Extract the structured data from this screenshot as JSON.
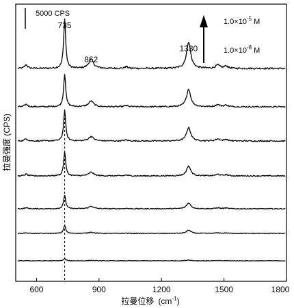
{
  "chart_data": {
    "type": "line",
    "xlabel_main": "拉曼位移",
    "xlabel_unit": "(cm",
    "xlabel_sup": "-1",
    "xlabel_close": ")",
    "ylabel": "拉曼强度 (CPS)",
    "xlim": [
      500,
      1800
    ],
    "xticks": [
      600,
      900,
      1200,
      1500,
      1800
    ],
    "scale_bar_label": "5000 CPS",
    "scale_bar_value": 5000,
    "dashed_line_x": 735,
    "peak_labels": [
      {
        "x": 735,
        "text": "735"
      },
      {
        "x": 862,
        "text": "862"
      },
      {
        "x": 1330,
        "text": "1330"
      }
    ],
    "conc_high": {
      "base": "1.0×10",
      "exp": "-5",
      "unit": " M"
    },
    "conc_low": {
      "base": "1.0×10",
      "exp": "-8",
      "unit": " M"
    },
    "series": [
      {
        "concentration_rank": 1,
        "peak_heights": {
          "735": 12000,
          "862": 2200,
          "1330": 6500
        }
      },
      {
        "concentration_rank": 2,
        "peak_heights": {
          "735": 8000,
          "862": 1400,
          "1330": 4300
        }
      },
      {
        "concentration_rank": 3,
        "peak_heights": {
          "735": 7500,
          "862": 1100,
          "1330": 3300
        }
      },
      {
        "concentration_rank": 4,
        "peak_heights": {
          "735": 5800,
          "862": 900,
          "1330": 2400
        }
      },
      {
        "concentration_rank": 5,
        "peak_heights": {
          "735": 3300,
          "862": 600,
          "1330": 1400
        }
      },
      {
        "concentration_rank": 6,
        "peak_heights": {
          "735": 2000,
          "862": 300,
          "1330": 800
        }
      },
      {
        "concentration_rank": 7,
        "peak_heights": {
          "735": 500,
          "862": 100,
          "1330": 200
        }
      }
    ]
  }
}
